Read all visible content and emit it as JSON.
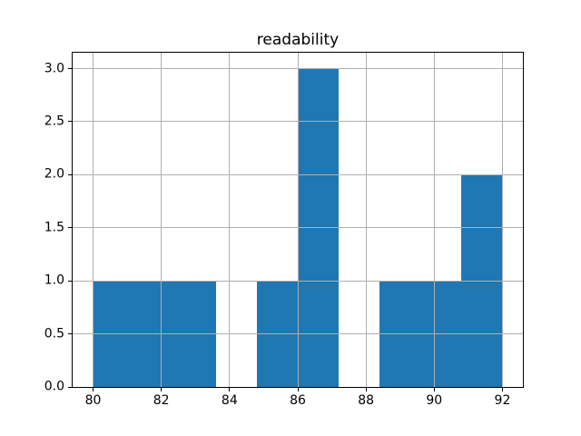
{
  "figure": {
    "background": "#ffffff"
  },
  "chart_data": {
    "type": "bar",
    "subtype": "histogram",
    "title": "readability",
    "xlabel": "",
    "ylabel": "",
    "bin_edges": [
      80.0,
      81.2,
      82.4,
      83.6,
      84.8,
      86.0,
      87.2,
      88.4,
      89.6,
      90.8,
      92.0
    ],
    "counts": [
      1,
      1,
      1,
      0,
      1,
      3,
      0,
      1,
      1,
      2
    ],
    "bar_color": "#1f77b4",
    "xlim": [
      79.4,
      92.6
    ],
    "ylim": [
      0,
      3.15
    ],
    "xticks": [
      80,
      82,
      84,
      86,
      88,
      90,
      92
    ],
    "xtick_labels": [
      "80",
      "82",
      "84",
      "86",
      "88",
      "90",
      "92"
    ],
    "yticks": [
      0.0,
      0.5,
      1.0,
      1.5,
      2.0,
      2.5,
      3.0
    ],
    "ytick_labels": [
      "0.0",
      "0.5",
      "1.0",
      "1.5",
      "2.0",
      "2.5",
      "3.0"
    ],
    "grid": true,
    "grid_color": "#b0b0b0",
    "grid_above_bars": true,
    "spine_color": "#000000",
    "text_color": "#000000",
    "legend": "none"
  }
}
